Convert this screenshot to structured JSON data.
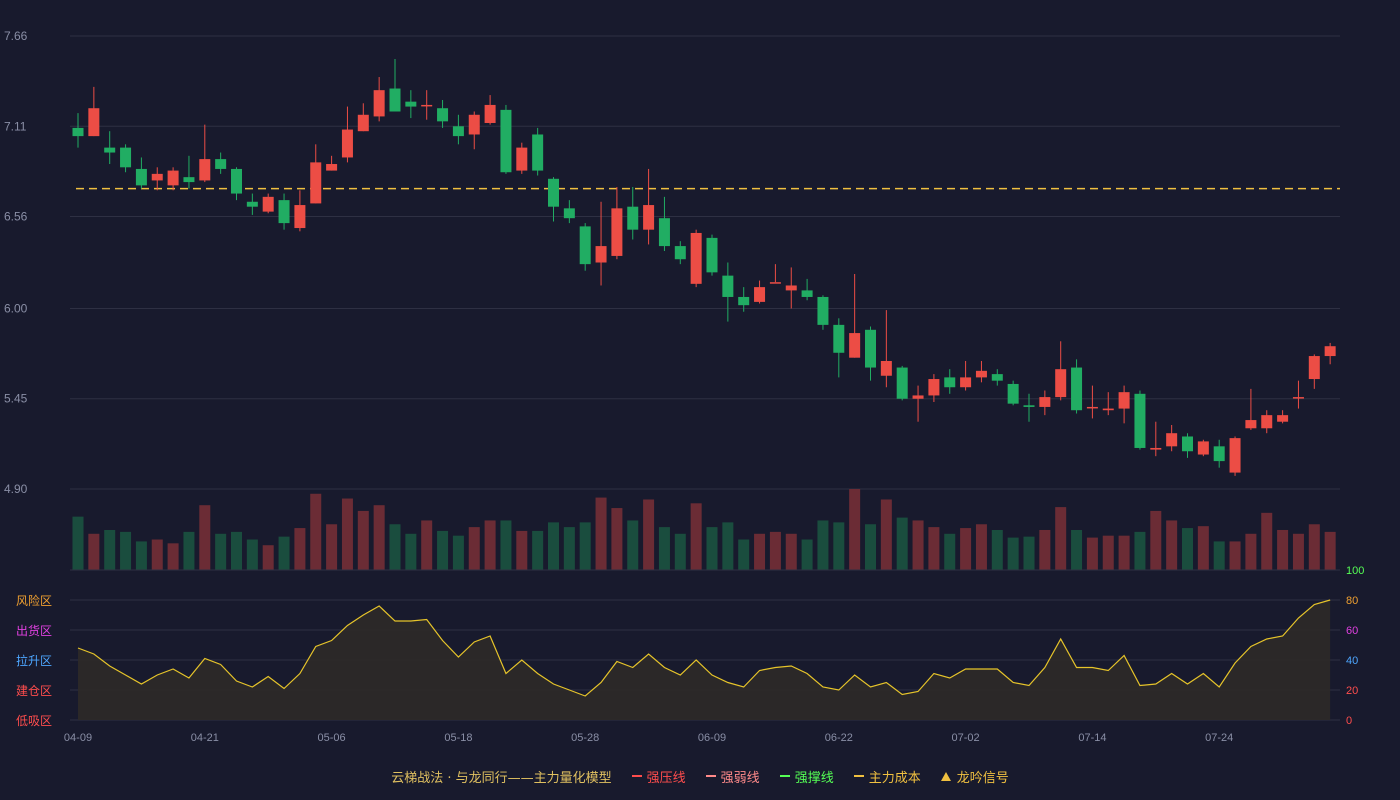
{
  "chart_data": {
    "type": "candlestick",
    "price_axis": {
      "ticks": [
        "7.66",
        "7.11",
        "6.56",
        "6.00",
        "5.45",
        "4.90"
      ],
      "range": [
        4.9,
        7.66
      ]
    },
    "cost_line": 6.73,
    "x_labels": [
      "04-09",
      "04-21",
      "05-06",
      "05-18",
      "05-28",
      "06-09",
      "06-22",
      "07-02",
      "07-14",
      "07-24"
    ],
    "x_label_index": [
      0,
      8,
      16,
      24,
      32,
      40,
      48,
      56,
      64,
      72
    ],
    "candles": [
      [
        7.1,
        7.05,
        7.19,
        6.98
      ],
      [
        7.05,
        7.22,
        7.35,
        7.05
      ],
      [
        6.98,
        6.95,
        7.08,
        6.88
      ],
      [
        6.98,
        6.86,
        7.0,
        6.83
      ],
      [
        6.85,
        6.75,
        6.92,
        6.73
      ],
      [
        6.78,
        6.82,
        6.86,
        6.72
      ],
      [
        6.75,
        6.84,
        6.86,
        6.72
      ],
      [
        6.8,
        6.77,
        6.93,
        6.73
      ],
      [
        6.78,
        6.91,
        7.12,
        6.77
      ],
      [
        6.91,
        6.85,
        6.95,
        6.82
      ],
      [
        6.85,
        6.7,
        6.86,
        6.66
      ],
      [
        6.65,
        6.62,
        6.7,
        6.57
      ],
      [
        6.59,
        6.68,
        6.7,
        6.58
      ],
      [
        6.66,
        6.52,
        6.7,
        6.48
      ],
      [
        6.49,
        6.63,
        6.72,
        6.47
      ],
      [
        6.64,
        6.89,
        7.0,
        6.64
      ],
      [
        6.84,
        6.88,
        6.93,
        6.84
      ],
      [
        6.92,
        7.09,
        7.23,
        6.89
      ],
      [
        7.08,
        7.18,
        7.25,
        7.08
      ],
      [
        7.17,
        7.33,
        7.41,
        7.14
      ],
      [
        7.34,
        7.2,
        7.52,
        7.2
      ],
      [
        7.26,
        7.23,
        7.33,
        7.16
      ],
      [
        7.24,
        7.24,
        7.33,
        7.15
      ],
      [
        7.22,
        7.14,
        7.27,
        7.1
      ],
      [
        7.11,
        7.05,
        7.18,
        7.0
      ],
      [
        7.06,
        7.18,
        7.2,
        6.97
      ],
      [
        7.13,
        7.24,
        7.3,
        7.12
      ],
      [
        7.21,
        6.83,
        7.24,
        6.82
      ],
      [
        6.84,
        6.98,
        7.01,
        6.82
      ],
      [
        7.06,
        6.84,
        7.1,
        6.81
      ],
      [
        6.79,
        6.62,
        6.8,
        6.53
      ],
      [
        6.61,
        6.55,
        6.66,
        6.52
      ],
      [
        6.5,
        6.27,
        6.52,
        6.23
      ],
      [
        6.28,
        6.38,
        6.65,
        6.14
      ],
      [
        6.32,
        6.61,
        6.74,
        6.3
      ],
      [
        6.62,
        6.48,
        6.74,
        6.42
      ],
      [
        6.48,
        6.63,
        6.85,
        6.39
      ],
      [
        6.55,
        6.38,
        6.68,
        6.35
      ],
      [
        6.38,
        6.3,
        6.41,
        6.27
      ],
      [
        6.15,
        6.46,
        6.48,
        6.13
      ],
      [
        6.43,
        6.22,
        6.45,
        6.2
      ],
      [
        6.2,
        6.07,
        6.28,
        5.92
      ],
      [
        6.07,
        6.02,
        6.13,
        5.98
      ],
      [
        6.04,
        6.13,
        6.17,
        6.03
      ],
      [
        6.16,
        6.16,
        6.27,
        6.16
      ],
      [
        6.11,
        6.14,
        6.25,
        6.0
      ],
      [
        6.11,
        6.07,
        6.18,
        6.05
      ],
      [
        6.07,
        5.9,
        6.08,
        5.87
      ],
      [
        5.9,
        5.73,
        5.94,
        5.58
      ],
      [
        5.7,
        5.85,
        6.21,
        5.7
      ],
      [
        5.87,
        5.64,
        5.89,
        5.56
      ],
      [
        5.59,
        5.68,
        5.99,
        5.52
      ],
      [
        5.64,
        5.45,
        5.65,
        5.44
      ],
      [
        5.45,
        5.47,
        5.53,
        5.31
      ],
      [
        5.47,
        5.57,
        5.6,
        5.43
      ],
      [
        5.58,
        5.52,
        5.63,
        5.48
      ],
      [
        5.52,
        5.58,
        5.68,
        5.5
      ],
      [
        5.58,
        5.62,
        5.68,
        5.55
      ],
      [
        5.6,
        5.56,
        5.63,
        5.53
      ],
      [
        5.54,
        5.42,
        5.56,
        5.41
      ],
      [
        5.41,
        5.4,
        5.48,
        5.31
      ],
      [
        5.4,
        5.46,
        5.5,
        5.35
      ],
      [
        5.46,
        5.63,
        5.8,
        5.44
      ],
      [
        5.64,
        5.38,
        5.69,
        5.36
      ],
      [
        5.4,
        5.4,
        5.53,
        5.33
      ],
      [
        5.38,
        5.39,
        5.49,
        5.35
      ],
      [
        5.39,
        5.49,
        5.53,
        5.3
      ],
      [
        5.48,
        5.15,
        5.5,
        5.14
      ],
      [
        5.14,
        5.15,
        5.31,
        5.1
      ],
      [
        5.16,
        5.24,
        5.29,
        5.13
      ],
      [
        5.22,
        5.13,
        5.24,
        5.09
      ],
      [
        5.11,
        5.19,
        5.2,
        5.1
      ],
      [
        5.16,
        5.07,
        5.2,
        5.03
      ],
      [
        5.0,
        5.21,
        5.22,
        4.98
      ],
      [
        5.27,
        5.32,
        5.51,
        5.26
      ],
      [
        5.27,
        5.35,
        5.38,
        5.24
      ],
      [
        5.31,
        5.35,
        5.38,
        5.3
      ],
      [
        5.46,
        5.46,
        5.56,
        5.39
      ],
      [
        5.57,
        5.71,
        5.72,
        5.51
      ],
      [
        5.71,
        5.77,
        5.79,
        5.66
      ]
    ],
    "volume": {
      "label": "100",
      "values": [
        56,
        38,
        42,
        40,
        30,
        32,
        28,
        40,
        68,
        38,
        40,
        32,
        26,
        35,
        44,
        80,
        48,
        75,
        62,
        68,
        48,
        38,
        52,
        41,
        36,
        45,
        52,
        52,
        41,
        41,
        50,
        45,
        50,
        76,
        65,
        52,
        74,
        45,
        38,
        70,
        45,
        50,
        32,
        38,
        40,
        38,
        32,
        52,
        50,
        85,
        48,
        74,
        55,
        52,
        45,
        38,
        44,
        48,
        42,
        34,
        35,
        42,
        66,
        42,
        34,
        36,
        36,
        40,
        62,
        52,
        44,
        46,
        30,
        30,
        38,
        60,
        42,
        38,
        48,
        40
      ]
    },
    "oscillator": {
      "zones": [
        "风险区",
        "出货区",
        "拉升区",
        "建仓区",
        "低吸区"
      ],
      "ticks": [
        "80",
        "60",
        "40",
        "20",
        "0"
      ],
      "range": [
        0,
        100
      ],
      "top_tick": "100",
      "values": [
        48,
        44,
        36,
        30,
        24,
        30,
        34,
        28,
        41,
        37,
        26,
        22,
        29,
        21,
        31,
        49,
        53,
        63,
        70,
        76,
        66,
        66,
        67,
        53,
        42,
        52,
        56,
        31,
        40,
        31,
        24,
        20,
        16,
        25,
        39,
        35,
        44,
        35,
        30,
        40,
        30,
        25,
        22,
        33,
        35,
        36,
        31,
        22,
        20,
        30,
        22,
        25,
        17,
        19,
        31,
        28,
        34,
        34,
        34,
        25,
        23,
        35,
        54,
        35,
        35,
        33,
        43,
        23,
        24,
        31,
        24,
        31,
        22,
        38,
        49,
        54,
        56,
        68,
        77,
        80
      ]
    },
    "legend": [
      {
        "label": "云梯战法 · 与龙同行——主力量化模型",
        "style": "title",
        "color": "#e0c060"
      },
      {
        "label": "强压线",
        "style": "solid",
        "color": "#ff4d4d"
      },
      {
        "label": "强弱线",
        "style": "dashed",
        "color": "#ff8a8a"
      },
      {
        "label": "强撑线",
        "style": "solid",
        "color": "#55ff55"
      },
      {
        "label": "主力成本",
        "style": "dashed",
        "color": "#f0c040"
      },
      {
        "label": "龙吟信号",
        "style": "triangle",
        "color": "#f0c040"
      }
    ],
    "colors": {
      "up": "#ec4d45",
      "down": "#21ad63",
      "vol_up": "#6b2c35",
      "vol_down": "#1a4d3e",
      "grid": "#2e3043",
      "axis_text": "#8a8fa6",
      "cost_line": "#f0c040",
      "osc_line": "#e6c42a",
      "osc_fill": "#2e2a28",
      "zone_colors": [
        "#f0a030",
        "#e040e0",
        "#4da6ff",
        "#ff4d4d",
        "#ff4d4d"
      ],
      "right_tick_colors": [
        "#f0a030",
        "#e040e0",
        "#4da6ff",
        "#ff4d4d",
        "#ff4d4d"
      ],
      "top_tick_color": "#55ff55"
    }
  }
}
